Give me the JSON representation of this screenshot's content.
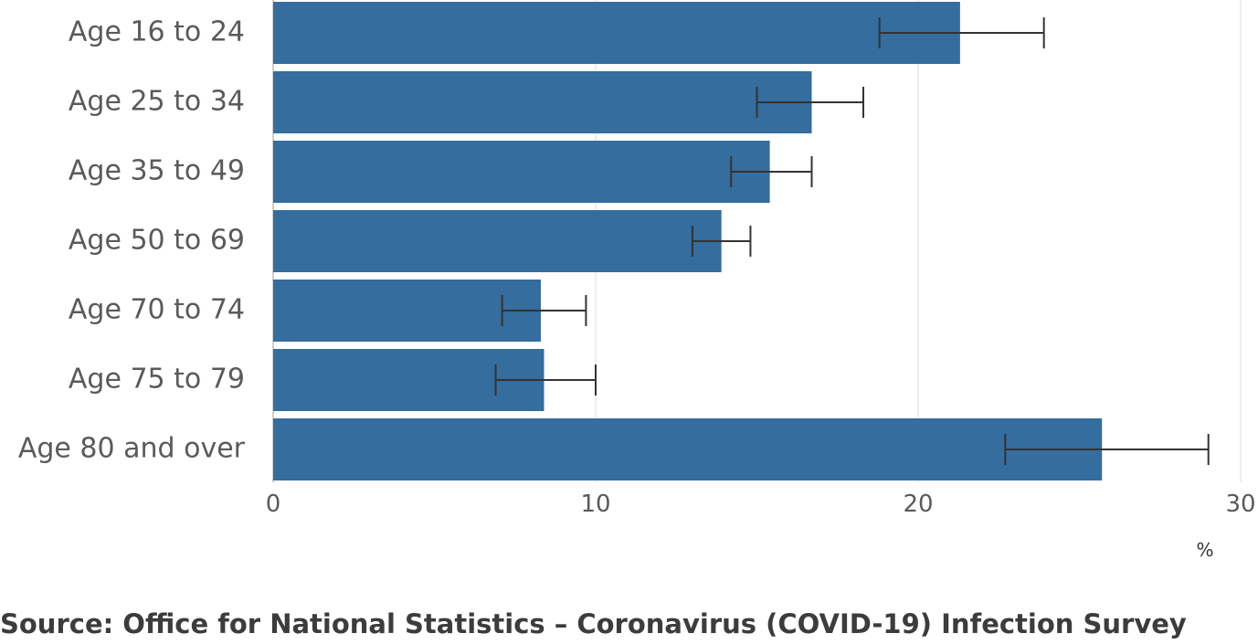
{
  "chart_data": {
    "type": "bar",
    "orientation": "horizontal",
    "categories": [
      "Age 16 to 24",
      "Age 25 to 34",
      "Age 35 to 49",
      "Age 50 to 69",
      "Age 70 to 74",
      "Age 75 to 79",
      "Age 80 and over"
    ],
    "values": [
      21.3,
      16.7,
      15.4,
      13.9,
      8.3,
      8.4,
      25.7
    ],
    "error_low": [
      18.8,
      15.0,
      14.2,
      13.0,
      7.1,
      6.9,
      22.7
    ],
    "error_high": [
      23.9,
      18.3,
      16.7,
      14.8,
      9.7,
      10.0,
      29.0
    ],
    "xlim": [
      0,
      30
    ],
    "x_ticks": [
      "0",
      "10",
      "20",
      "30"
    ],
    "unit_label": "%",
    "grid": "vertical",
    "bar_color": "#346d9e",
    "error_color": "#333333"
  },
  "source": "Source: Office for National Statistics – Coronavirus (COVID-19) Infection Survey"
}
